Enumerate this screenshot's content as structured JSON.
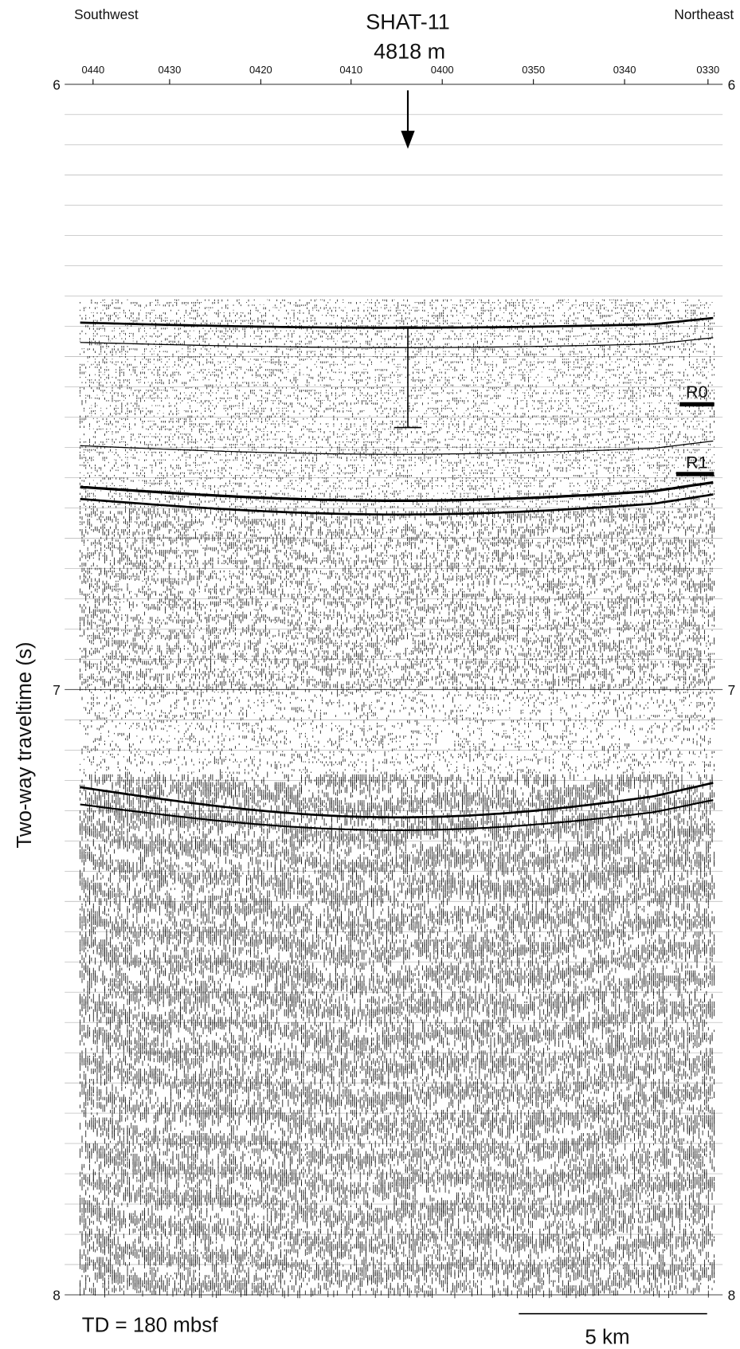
{
  "header": {
    "west": "Southwest",
    "east": "Northeast",
    "site": "SHAT-11",
    "water_depth": "4818 m"
  },
  "shotpoints": [
    "0440",
    "0430",
    "0420",
    "0410",
    "0400",
    "0350",
    "0340",
    "0330"
  ],
  "time_axis": {
    "title": "Two-way traveltime (s)",
    "labels": [
      "6",
      "7",
      "8"
    ]
  },
  "reflectors": [
    "R0",
    "R1"
  ],
  "footer": {
    "td": "TD = 180 mbsf",
    "scale": "5 km"
  }
}
